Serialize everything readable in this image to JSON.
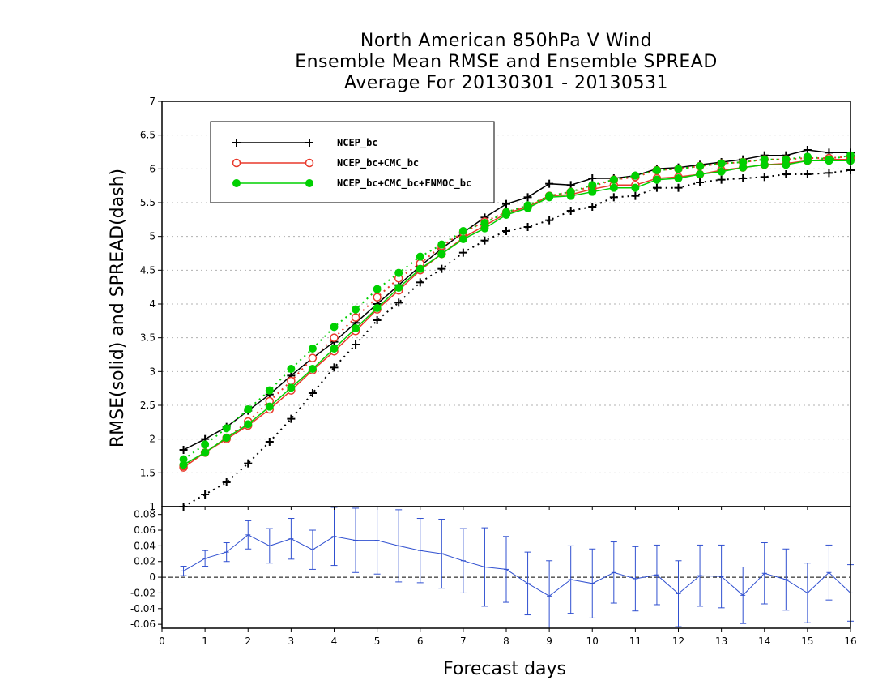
{
  "title": {
    "line1": "North American 850hPa V Wind",
    "line2": "Ensemble Mean RMSE and Ensemble SPREAD",
    "line3": "Average For 20130301 - 20130531"
  },
  "chart_data": [
    {
      "type": "line",
      "panel": "top",
      "ylabel": "RMSE(solid) and SPREAD(dash)",
      "ylim": [
        1,
        7
      ],
      "yticks": [
        "1.5",
        "2",
        "2.5",
        "3",
        "3.5",
        "4",
        "4.5",
        "5",
        "5.5",
        "6",
        "6.5",
        "7"
      ],
      "ytick_values": [
        1.5,
        2,
        2.5,
        3,
        3.5,
        4,
        4.5,
        5,
        5.5,
        6,
        6.5,
        7
      ],
      "ybottom_label": "1",
      "grid": true,
      "legend_position": "top-left",
      "x": [
        0.5,
        1,
        1.5,
        2,
        2.5,
        3,
        3.5,
        4,
        4.5,
        5,
        5.5,
        6,
        6.5,
        7,
        7.5,
        8,
        8.5,
        9,
        9.5,
        10,
        10.5,
        11,
        11.5,
        12,
        12.5,
        13,
        13.5,
        14,
        14.5,
        15,
        15.5,
        16
      ],
      "series": [
        {
          "name": "NCEP_bc",
          "style": "solid",
          "color": "#000000",
          "marker": "plus",
          "values": [
            1.84,
            2.0,
            2.18,
            2.42,
            2.66,
            2.94,
            3.2,
            3.44,
            3.72,
            4.0,
            4.28,
            4.56,
            4.82,
            5.06,
            5.28,
            5.48,
            5.58,
            5.78,
            5.76,
            5.86,
            5.86,
            5.9,
            6.0,
            6.02,
            6.06,
            6.1,
            6.14,
            6.2,
            6.2,
            6.28,
            6.24,
            6.24
          ]
        },
        {
          "name": "NCEP_bc",
          "style": "dash",
          "color": "#000000",
          "marker": "plus",
          "values": [
            1.0,
            1.18,
            1.36,
            1.64,
            1.96,
            2.3,
            2.68,
            3.06,
            3.4,
            3.76,
            4.02,
            4.32,
            4.52,
            4.76,
            4.94,
            5.08,
            5.14,
            5.24,
            5.38,
            5.44,
            5.58,
            5.6,
            5.72,
            5.72,
            5.8,
            5.84,
            5.86,
            5.88,
            5.92,
            5.92,
            5.94,
            5.98
          ]
        },
        {
          "name": "NCEP_bc+CMC_bc",
          "style": "solid",
          "color": "#e8392b",
          "marker": "open-circle",
          "values": [
            1.58,
            1.8,
            2.0,
            2.2,
            2.44,
            2.72,
            3.02,
            3.3,
            3.6,
            3.92,
            4.2,
            4.5,
            4.74,
            4.98,
            5.16,
            5.34,
            5.44,
            5.6,
            5.62,
            5.7,
            5.76,
            5.76,
            5.86,
            5.88,
            5.92,
            5.98,
            6.02,
            6.06,
            6.08,
            6.12,
            6.14,
            6.14
          ]
        },
        {
          "name": "NCEP_bc+CMC_bc",
          "style": "dash",
          "color": "#e8392b",
          "marker": "open-circle",
          "values": [
            1.6,
            1.8,
            2.02,
            2.26,
            2.56,
            2.86,
            3.2,
            3.5,
            3.8,
            4.1,
            4.38,
            4.6,
            4.86,
            5.06,
            5.22,
            5.36,
            5.44,
            5.6,
            5.66,
            5.74,
            5.84,
            5.88,
            5.98,
            6.0,
            6.04,
            6.08,
            6.1,
            6.14,
            6.14,
            6.16,
            6.16,
            6.18
          ]
        },
        {
          "name": "NCEP_bc+CMC_bc+FNMOC_bc",
          "style": "solid",
          "color": "#00d000",
          "marker": "filled-circle",
          "values": [
            1.62,
            1.8,
            2.02,
            2.22,
            2.48,
            2.76,
            3.04,
            3.34,
            3.64,
            3.94,
            4.24,
            4.52,
            4.74,
            4.96,
            5.12,
            5.32,
            5.42,
            5.58,
            5.6,
            5.66,
            5.72,
            5.72,
            5.84,
            5.86,
            5.92,
            5.96,
            6.02,
            6.06,
            6.06,
            6.12,
            6.12,
            6.12
          ]
        },
        {
          "name": "NCEP_bc+CMC_bc+FNMOC_bc",
          "style": "dash",
          "color": "#00d000",
          "marker": "filled-circle",
          "values": [
            1.7,
            1.92,
            2.16,
            2.44,
            2.72,
            3.04,
            3.34,
            3.66,
            3.92,
            4.22,
            4.46,
            4.7,
            4.88,
            5.08,
            5.2,
            5.36,
            5.46,
            5.6,
            5.66,
            5.76,
            5.84,
            5.9,
            5.98,
            6.0,
            6.04,
            6.08,
            6.1,
            6.14,
            6.14,
            6.18,
            6.14,
            6.2
          ]
        }
      ]
    },
    {
      "type": "line",
      "panel": "bottom",
      "ylim": [
        -0.065,
        0.09
      ],
      "yticks": [
        "-0.06",
        "-0.04",
        "-0.02",
        "0",
        "0.02",
        "0.04",
        "0.06",
        "0.08"
      ],
      "ytick_values": [
        -0.06,
        -0.04,
        -0.02,
        0,
        0.02,
        0.04,
        0.06,
        0.08
      ],
      "xlabel": "Forecast days",
      "xlim": [
        0,
        16
      ],
      "xticks": [
        "0",
        "1",
        "2",
        "3",
        "4",
        "5",
        "6",
        "7",
        "8",
        "9",
        "10",
        "11",
        "12",
        "13",
        "14",
        "15",
        "16"
      ],
      "zero_line": true,
      "series": [
        {
          "name": "",
          "color": "#3050d0",
          "x": [
            0.5,
            1,
            1.5,
            2,
            2.5,
            3,
            3.5,
            4,
            4.5,
            5,
            5.5,
            6,
            6.5,
            7,
            7.5,
            8,
            8.5,
            9,
            9.5,
            10,
            10.5,
            11,
            11.5,
            12,
            12.5,
            13,
            13.5,
            14,
            14.5,
            15,
            15.5,
            16
          ],
          "values": [
            0.008,
            0.024,
            0.032,
            0.054,
            0.04,
            0.049,
            0.035,
            0.052,
            0.047,
            0.047,
            0.04,
            0.034,
            0.03,
            0.021,
            0.013,
            0.01,
            -0.008,
            -0.024,
            -0.003,
            -0.008,
            0.006,
            -0.002,
            0.003,
            -0.021,
            0.002,
            0.001,
            -0.023,
            0.005,
            -0.003,
            -0.02,
            0.006,
            -0.02
          ],
          "errors": [
            0.006,
            0.01,
            0.012,
            0.018,
            0.022,
            0.026,
            0.025,
            0.037,
            0.041,
            0.043,
            0.046,
            0.041,
            0.044,
            0.041,
            0.05,
            0.042,
            0.04,
            0.045,
            0.043,
            0.044,
            0.039,
            0.041,
            0.038,
            0.042,
            0.039,
            0.04,
            0.036,
            0.039,
            0.039,
            0.038,
            0.035,
            0.036
          ]
        }
      ]
    }
  ]
}
